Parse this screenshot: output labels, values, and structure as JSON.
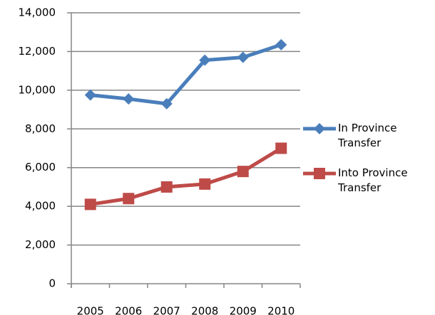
{
  "chart_data": {
    "type": "line",
    "categories": [
      "2005",
      "2006",
      "2007",
      "2008",
      "2009",
      "2010"
    ],
    "series": [
      {
        "name": "In Province Transfer",
        "color": "#4a7ebb",
        "marker": "diamond",
        "values": [
          9750,
          9550,
          9300,
          11550,
          11700,
          12350
        ]
      },
      {
        "name": "Into Province Transfer",
        "color": "#be4b48",
        "marker": "square",
        "values": [
          4100,
          4400,
          5000,
          5150,
          5800,
          7000
        ]
      }
    ],
    "ylim": [
      0,
      14000
    ],
    "yticks": [
      0,
      {
        "value": 2000,
        "label": "2,000"
      },
      {
        "value": 4000,
        "label": "4,000"
      },
      {
        "value": 6000,
        "label": "6,000"
      },
      {
        "value": 8000,
        "label": "8,000"
      },
      {
        "value": 10000,
        "label": "10,000"
      },
      {
        "value": 12000,
        "label": "12,000"
      },
      {
        "value": 14000,
        "label": "14,000"
      }
    ],
    "grid": true,
    "legend": "right"
  }
}
